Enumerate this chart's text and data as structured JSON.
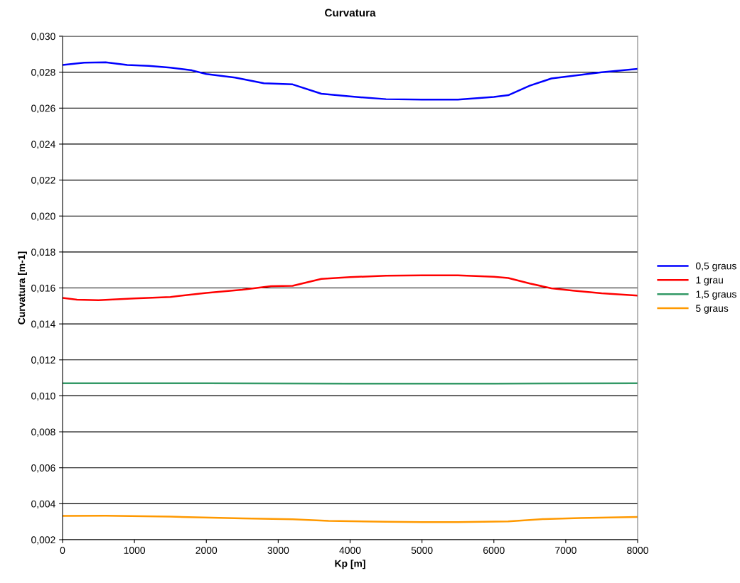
{
  "chart_data": {
    "type": "line",
    "title": "Curvatura",
    "xlabel": "Kp [m]",
    "ylabel": "Curvatura [m-1]",
    "xlim": [
      0,
      8000
    ],
    "xticks": [
      0,
      1000,
      2000,
      3000,
      4000,
      5000,
      6000,
      7000,
      8000
    ],
    "ylim": [
      0.002,
      0.03
    ],
    "yticks": [
      {
        "value": 0.002,
        "label": "0,002"
      },
      {
        "value": 0.004,
        "label": "0,004"
      },
      {
        "value": 0.006,
        "label": "0,006"
      },
      {
        "value": 0.008,
        "label": "0,008"
      },
      {
        "value": 0.01,
        "label": "0,010"
      },
      {
        "value": 0.012,
        "label": "0,012"
      },
      {
        "value": 0.014,
        "label": "0,014"
      },
      {
        "value": 0.016,
        "label": "0,016"
      },
      {
        "value": 0.018,
        "label": "0,018"
      },
      {
        "value": 0.02,
        "label": "0,020"
      },
      {
        "value": 0.022,
        "label": "0,022"
      },
      {
        "value": 0.024,
        "label": "0,024"
      },
      {
        "value": 0.026,
        "label": "0,026"
      },
      {
        "value": 0.028,
        "label": "0,028"
      },
      {
        "value": 0.03,
        "label": "0,030"
      }
    ],
    "grid": "y",
    "legend": "right",
    "marker": "none",
    "line_style": "solid",
    "series": [
      {
        "name": "0,5 graus",
        "color": "#0000ff",
        "x": [
          0,
          300,
          600,
          900,
          1200,
          1500,
          1800,
          2000,
          2400,
          2800,
          3200,
          3600,
          4000,
          4500,
          5000,
          5500,
          6000,
          6200,
          6500,
          6800,
          7100,
          7500,
          8000
        ],
        "values": [
          0.0284,
          0.02853,
          0.02855,
          0.0284,
          0.02835,
          0.02825,
          0.0281,
          0.0279,
          0.0277,
          0.02738,
          0.02732,
          0.0268,
          0.02665,
          0.0265,
          0.02648,
          0.02648,
          0.02662,
          0.02672,
          0.02725,
          0.02765,
          0.0278,
          0.028,
          0.02818
        ]
      },
      {
        "name": "1 grau",
        "color": "#ff0000",
        "x": [
          0,
          200,
          500,
          1000,
          1500,
          2000,
          2500,
          2900,
          3200,
          3600,
          4000,
          4500,
          5000,
          5500,
          6000,
          6200,
          6500,
          6800,
          7100,
          7500,
          8000
        ],
        "values": [
          0.01545,
          0.01535,
          0.01532,
          0.01542,
          0.0155,
          0.01572,
          0.0159,
          0.0161,
          0.01612,
          0.0165,
          0.0166,
          0.01668,
          0.0167,
          0.0167,
          0.01662,
          0.01655,
          0.01625,
          0.01598,
          0.01585,
          0.0157,
          0.01558
        ]
      },
      {
        "name": "1,5 graus",
        "color": "#339966",
        "x": [
          0,
          2000,
          4000,
          6000,
          8000
        ],
        "values": [
          0.0107,
          0.0107,
          0.01068,
          0.01068,
          0.0107
        ]
      },
      {
        "name": "5 graus",
        "color": "#ff9900",
        "x": [
          0,
          600,
          1500,
          2500,
          3200,
          3700,
          4500,
          5000,
          5500,
          6200,
          6700,
          7200,
          8000
        ],
        "values": [
          0.00332,
          0.00333,
          0.00328,
          0.00318,
          0.00314,
          0.00305,
          0.003,
          0.00298,
          0.00298,
          0.00302,
          0.00315,
          0.0032,
          0.00326
        ]
      }
    ]
  }
}
